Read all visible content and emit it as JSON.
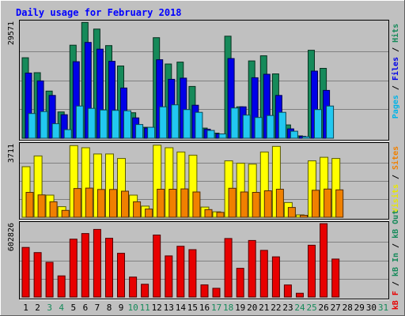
{
  "chart_data": {
    "type": "bar",
    "title": "Daily usage for February 2018",
    "days": [
      {
        "label": "1",
        "weekend": false
      },
      {
        "label": "2",
        "weekend": false
      },
      {
        "label": "3",
        "weekend": true
      },
      {
        "label": "4",
        "weekend": true
      },
      {
        "label": "5",
        "weekend": false
      },
      {
        "label": "6",
        "weekend": false
      },
      {
        "label": "7",
        "weekend": false
      },
      {
        "label": "8",
        "weekend": false
      },
      {
        "label": "9",
        "weekend": false
      },
      {
        "label": "10",
        "weekend": true
      },
      {
        "label": "11",
        "weekend": true
      },
      {
        "label": "12",
        "weekend": false
      },
      {
        "label": "13",
        "weekend": false
      },
      {
        "label": "14",
        "weekend": false
      },
      {
        "label": "15",
        "weekend": false
      },
      {
        "label": "16",
        "weekend": false
      },
      {
        "label": "17",
        "weekend": true
      },
      {
        "label": "18",
        "weekend": true
      },
      {
        "label": "19",
        "weekend": false
      },
      {
        "label": "20",
        "weekend": false
      },
      {
        "label": "21",
        "weekend": false
      },
      {
        "label": "22",
        "weekend": false
      },
      {
        "label": "23",
        "weekend": false
      },
      {
        "label": "24",
        "weekend": true
      },
      {
        "label": "25",
        "weekend": true
      },
      {
        "label": "26",
        "weekend": false
      },
      {
        "label": "27",
        "weekend": false
      },
      {
        "label": "28",
        "weekend": false
      },
      {
        "label": "29",
        "weekend": false
      },
      {
        "label": "30",
        "weekend": false
      },
      {
        "label": "31",
        "weekend": true
      }
    ],
    "panels": [
      {
        "id": "hits-panel",
        "max_label": "29571",
        "ymax": 29571,
        "legend": [
          {
            "text": "Pages",
            "color": "#00b4e8"
          },
          {
            "text": " / ",
            "color": "#000000"
          },
          {
            "text": "Files",
            "color": "#0000e8"
          },
          {
            "text": " / ",
            "color": "#000000"
          },
          {
            "text": "Hits",
            "color": "#168a5a"
          }
        ],
        "series": [
          {
            "name": "Hits",
            "color": "#168a5a",
            "values": [
              20500,
              16700,
              12000,
              6700,
              23700,
              29500,
              27800,
              23600,
              18400,
              6500,
              2800,
              25600,
              18900,
              19400,
              13200,
              2600,
              1300,
              26000,
              8000,
              19700,
              21000,
              16400,
              3400,
              600,
              22400,
              17800,
              null,
              null,
              null,
              null,
              null
            ]
          },
          {
            "name": "Files",
            "color": "#0000e8",
            "values": [
              16600,
              14600,
              10900,
              6000,
              19500,
              24400,
              22700,
              19600,
              12800,
              5200,
              2600,
              20000,
              15000,
              15300,
              8400,
              2300,
              1100,
              20300,
              8000,
              15400,
              16300,
              10900,
              2400,
              500,
              17100,
              12200,
              null,
              null,
              null,
              null,
              null
            ]
          },
          {
            "name": "Pages",
            "color": "#22c8f0",
            "values": [
              6300,
              6800,
              3700,
              2200,
              8200,
              7600,
              7200,
              7100,
              7000,
              3500,
              2800,
              8000,
              8500,
              7300,
              6600,
              2000,
              1100,
              7700,
              5900,
              5300,
              5800,
              6600,
              1800,
              400,
              7300,
              8200,
              null,
              null,
              null,
              null,
              null
            ]
          }
        ]
      },
      {
        "id": "visits-panel",
        "max_label": "3711",
        "ymax": 3711,
        "legend": [
          {
            "text": "Visits",
            "color": "#e8e800"
          },
          {
            "text": " / ",
            "color": "#000000"
          },
          {
            "text": "Sites",
            "color": "#f08000"
          }
        ],
        "series": [
          {
            "name": "Visits",
            "color": "#ffff00",
            "values": [
              2580,
              3130,
              1130,
              540,
              3660,
              3550,
              3230,
              3230,
              3000,
              1130,
              570,
              3680,
              3550,
              3330,
              3170,
              520,
              280,
              2880,
              2760,
              2710,
              3330,
              3620,
              750,
              120,
              2880,
              3060,
              3000,
              null,
              null,
              null,
              null
            ]
          },
          {
            "name": "Sites",
            "color": "#f08000",
            "values": [
              1270,
              1140,
              790,
              350,
              1470,
              1490,
              1420,
              1420,
              1330,
              790,
              420,
              1430,
              1430,
              1450,
              1290,
              390,
              250,
              1480,
              1290,
              1270,
              1350,
              1430,
              500,
              100,
              1380,
              1440,
              1400,
              null,
              null,
              null,
              null
            ]
          }
        ]
      },
      {
        "id": "kbytes-panel",
        "max_label": "602826",
        "ymax": 602826,
        "legend": [
          {
            "text": "kB F",
            "color": "#e80000"
          },
          {
            "text": " / ",
            "color": "#000000"
          },
          {
            "text": "kB In",
            "color": "#168a5a"
          },
          {
            "text": " / ",
            "color": "#000000"
          },
          {
            "text": "kB Out",
            "color": "#168a5a"
          }
        ],
        "series": [
          {
            "name": "kB F",
            "color": "#e80000",
            "values": [
              407000,
              365000,
              285000,
              174000,
              475000,
              521000,
              555000,
              482000,
              359000,
              164000,
              105000,
              509000,
              338000,
              417000,
              389000,
              100000,
              72000,
              480000,
              236000,
              464000,
              383000,
              330000,
              99000,
              31000,
              425000,
              602000,
              312000,
              null,
              null,
              null,
              null
            ]
          }
        ]
      }
    ],
    "colors": {
      "background": "#c0c0c0",
      "title": "#0000ff",
      "weekday_label": "#000000",
      "weekend_label": "#168a5a"
    }
  }
}
